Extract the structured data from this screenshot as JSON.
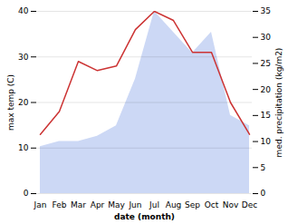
{
  "chart_data": {
    "type": "line",
    "xlabel": "date (month)",
    "ylabel": "max temp (C)",
    "y2label": "med. precipitation (kg/m2)",
    "categories": [
      "Jan",
      "Feb",
      "Mar",
      "Apr",
      "May",
      "Jun",
      "Jul",
      "Aug",
      "Sep",
      "Oct",
      "Nov",
      "Dec"
    ],
    "series": [
      {
        "type": "area",
        "axis": "y2",
        "color": "#ccd8f5",
        "values": [
          9,
          10,
          10,
          11,
          13,
          22,
          35,
          31,
          27,
          31,
          15,
          13
        ]
      },
      {
        "type": "line",
        "color": "#cc3333",
        "values": [
          13,
          18,
          29,
          27,
          28,
          36,
          40,
          38,
          31,
          31,
          20,
          13
        ]
      }
    ],
    "ylim": [
      0,
      40
    ],
    "yticks": [
      0,
      10,
      20,
      30,
      40
    ],
    "y2lim": [
      0,
      35
    ],
    "y2ticks": [
      0,
      5,
      10,
      15,
      20,
      25,
      30,
      35
    ],
    "grid": true
  }
}
